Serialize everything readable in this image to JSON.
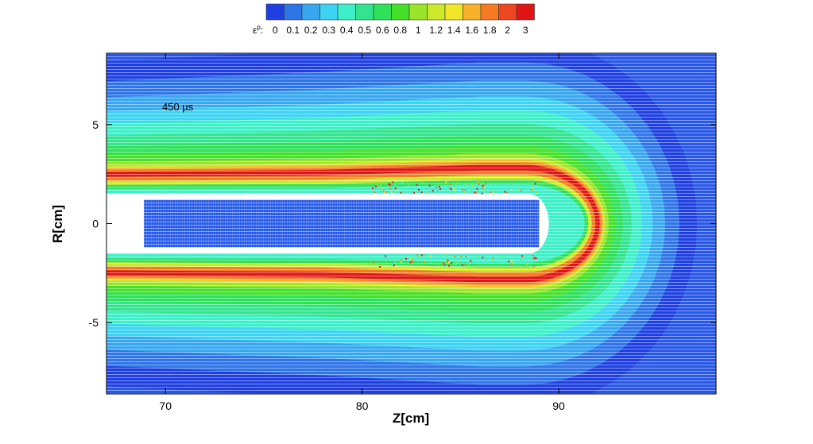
{
  "chart_data": {
    "type": "heatmap",
    "title": "",
    "xlabel": "Z[cm]",
    "ylabel": "R[cm]",
    "xlim": [
      67,
      98
    ],
    "ylim": [
      -8.6,
      8.6
    ],
    "xticks": [
      70,
      80,
      90
    ],
    "yticks": [
      5,
      0,
      -5
    ],
    "xtick_labels": [
      "70",
      "80",
      "90"
    ],
    "ytick_labels": [
      "5",
      "0",
      "-5"
    ],
    "grid": false,
    "annotation": "450 µs",
    "colorbar": {
      "label_base": "ε",
      "label_sup": "p",
      "label_suffix": ":",
      "placement": "top",
      "levels": [
        "0",
        "0.1",
        "0.2",
        "0.3",
        "0.4",
        "0.5",
        "0.6",
        "0.8",
        "1",
        "1.2",
        "1.4",
        "1.6",
        "1.8",
        "2",
        "3"
      ],
      "colors": [
        "#1f3fe0",
        "#2f75e8",
        "#38a7ef",
        "#3dd3f2",
        "#3ef0c9",
        "#33e48f",
        "#2fe05a",
        "#45e02a",
        "#9ae52a",
        "#cdea2a",
        "#f3e62a",
        "#f8b12a",
        "#f57a22",
        "#ef4522",
        "#e01515"
      ]
    },
    "projectile": {
      "z_range": [
        68.9,
        89.0
      ],
      "r_range": [
        -1.2,
        1.2
      ],
      "color": "#2257ea"
    },
    "crater": {
      "inner_radius": 1.5,
      "bottom_z": 89.5,
      "band_peak_radius": 2.75,
      "colors": {
        "background": "#2a58e6",
        "peak": "#e01818"
      }
    }
  }
}
